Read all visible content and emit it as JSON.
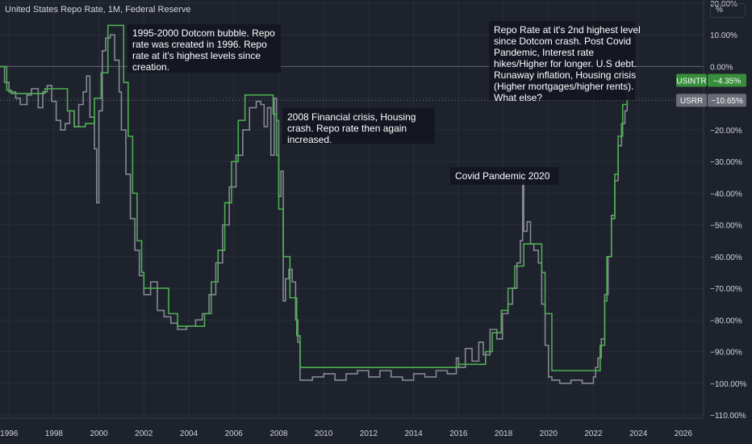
{
  "header": {
    "title": "United States Repo Rate, 1M, Federal Reserve",
    "unit_label": "%"
  },
  "colors": {
    "background": "#1e222d",
    "grid": "#2a2e39",
    "usintr": "#4caf50",
    "usrr": "#868993",
    "text": "#d1d4dc",
    "annotation_bg": "#131722"
  },
  "chart_data": {
    "type": "line",
    "title": "United States Repo Rate, 1M, Federal Reserve",
    "xlim": [
      1995.6,
      2026.9
    ],
    "ylim": [
      -111,
      21
    ],
    "x_ticks": [
      1996,
      1998,
      2000,
      2002,
      2004,
      2006,
      2008,
      2010,
      2012,
      2014,
      2016,
      2018,
      2020,
      2022,
      2024,
      2026
    ],
    "y_ticks": [
      20,
      10,
      0,
      -10,
      -20,
      -30,
      -40,
      -50,
      -60,
      -70,
      -80,
      -90,
      -100,
      -110
    ],
    "y_tick_labels": [
      "20.00%",
      "10.00%",
      "0.00%",
      "−10.00%",
      "−20.00%",
      "−30.00%",
      "−40.00%",
      "−50.00%",
      "−60.00%",
      "−70.00%",
      "−80.00%",
      "−90.00%",
      "−100.00%",
      "−110.00%"
    ],
    "grid": true,
    "series": [
      {
        "name": "USINTR",
        "color": "#4caf50",
        "last_label": "−4.35%",
        "x": [
          1995.6,
          1995.9,
          1996.1,
          1997.2,
          1997.6,
          1998.6,
          1998.9,
          1999.4,
          1999.8,
          2000.1,
          2000.4,
          2000.95,
          2001.1,
          2001.3,
          2001.5,
          2001.7,
          2001.9,
          2002.0,
          2002.8,
          2003.1,
          2003.5,
          2004.5,
          2004.7,
          2005.0,
          2005.3,
          2005.6,
          2005.9,
          2006.2,
          2006.5,
          2007.6,
          2007.75,
          2007.9,
          2008.0,
          2008.2,
          2008.5,
          2008.8,
          2008.95,
          2015.9,
          2016.0,
          2016.9,
          2017.2,
          2017.5,
          2017.9,
          2018.2,
          2018.5,
          2018.9,
          2019.5,
          2019.7,
          2019.85,
          2020.15,
          2022.2,
          2022.3,
          2022.5,
          2022.6,
          2022.8,
          2022.95,
          2023.1,
          2023.3,
          2023.5
        ],
        "y": [
          0,
          -7.5,
          -8.5,
          -8.5,
          -7,
          -14,
          -19,
          -18,
          -10,
          -2,
          13,
          13,
          -5,
          -22,
          -40,
          -55,
          -65,
          -70,
          -70,
          -78,
          -82,
          -82,
          -78,
          -68,
          -58,
          -43,
          -30,
          -17,
          -9,
          -9,
          -15,
          -28,
          -45,
          -60,
          -73,
          -85,
          -95,
          -95,
          -94,
          -94,
          -90,
          -84,
          -77,
          -70,
          -63,
          -56,
          -56,
          -65,
          -78,
          -96,
          -96,
          -88,
          -74,
          -60,
          -48,
          -34,
          -22,
          -12,
          -4.35
        ]
      },
      {
        "name": "USRR",
        "color": "#868993",
        "last_label": "−10.65%",
        "x": [
          1995.6,
          1995.8,
          1996.0,
          1996.3,
          1996.5,
          1996.8,
          1997.0,
          1997.3,
          1997.5,
          1997.7,
          1997.9,
          1998.1,
          1998.3,
          1998.5,
          1998.7,
          1998.9,
          1999.1,
          1999.3,
          1999.45,
          1999.6,
          1999.8,
          1999.9,
          2000.0,
          2000.15,
          2000.3,
          2000.5,
          2000.7,
          2000.9,
          2001.0,
          2001.2,
          2001.4,
          2001.6,
          2001.8,
          2002.0,
          2002.3,
          2002.6,
          2002.9,
          2003.2,
          2003.5,
          2003.9,
          2004.3,
          2004.6,
          2004.9,
          2005.2,
          2005.5,
          2005.8,
          2006.1,
          2006.4,
          2006.7,
          2007.0,
          2007.2,
          2007.35,
          2007.5,
          2007.65,
          2007.8,
          2007.9,
          2008.0,
          2008.1,
          2008.2,
          2008.3,
          2008.45,
          2008.6,
          2008.75,
          2008.85,
          2008.95,
          2009.5,
          2010.0,
          2010.5,
          2011.0,
          2011.5,
          2012.0,
          2012.5,
          2013.0,
          2013.5,
          2014.0,
          2014.5,
          2015.0,
          2015.5,
          2015.9,
          2016.0,
          2016.3,
          2016.6,
          2016.9,
          2017.1,
          2017.4,
          2017.7,
          2017.95,
          2018.2,
          2018.4,
          2018.6,
          2018.75,
          2018.85,
          2018.9,
          2019.05,
          2019.2,
          2019.35,
          2019.55,
          2019.7,
          2019.85,
          2020.0,
          2020.15,
          2020.5,
          2021.0,
          2021.5,
          2022.0,
          2022.1,
          2022.2,
          2022.35,
          2022.5,
          2022.65,
          2022.8,
          2022.95,
          2023.1,
          2023.25,
          2023.4,
          2023.5
        ],
        "y": [
          0,
          -5,
          -8,
          -10,
          -12,
          -9,
          -7,
          -13,
          -8,
          -6,
          -11,
          -17,
          -20,
          -18,
          -14,
          -19,
          -12,
          -8,
          -3,
          -16,
          -26,
          -43,
          -14,
          5,
          9,
          10,
          2,
          -8,
          -20,
          -34,
          -48,
          -58,
          -66,
          -72,
          -68,
          -77,
          -79,
          -81,
          -83,
          -82,
          -80,
          -78,
          -72,
          -62,
          -50,
          -38,
          -28,
          -20,
          -13,
          -11,
          -12,
          -19,
          -13,
          -28,
          -10,
          -17,
          -41,
          -33,
          -74,
          -67,
          -64,
          -68,
          -80,
          -87,
          -99,
          -98,
          -97,
          -99,
          -97,
          -96,
          -98,
          -96,
          -98,
          -99,
          -97,
          -98,
          -96,
          -97,
          -92,
          -95,
          -89,
          -93,
          -87,
          -91,
          -83,
          -86,
          -78,
          -75,
          -70,
          -62,
          -55,
          -35,
          -52,
          -49,
          -56,
          -58,
          -62,
          -75,
          -88,
          -98,
          -99,
          -100,
          -99,
          -100,
          -98,
          -95,
          -92,
          -86,
          -72,
          -60,
          -47,
          -36,
          -25,
          -18,
          -14,
          -10.65
        ]
      }
    ],
    "annotations": [
      {
        "text": "1995-2000 Dotcom bubble. Repo rate was created in 1996. Repo rate at it's highest levels since creation."
      },
      {
        "text": "2008 Financial crisis, Housing crash. Repo rate then again increased."
      },
      {
        "text": "Covid Pandemic 2020"
      },
      {
        "text": "Repo Rate at it's 2nd highest level since Dotcom crash. Post Covid Pandemic, Interest rate hikes/Higher for longer. U.S debt. Runaway inflation, Housing crisis (Higher mortgages/higher rents). What else?"
      }
    ]
  }
}
